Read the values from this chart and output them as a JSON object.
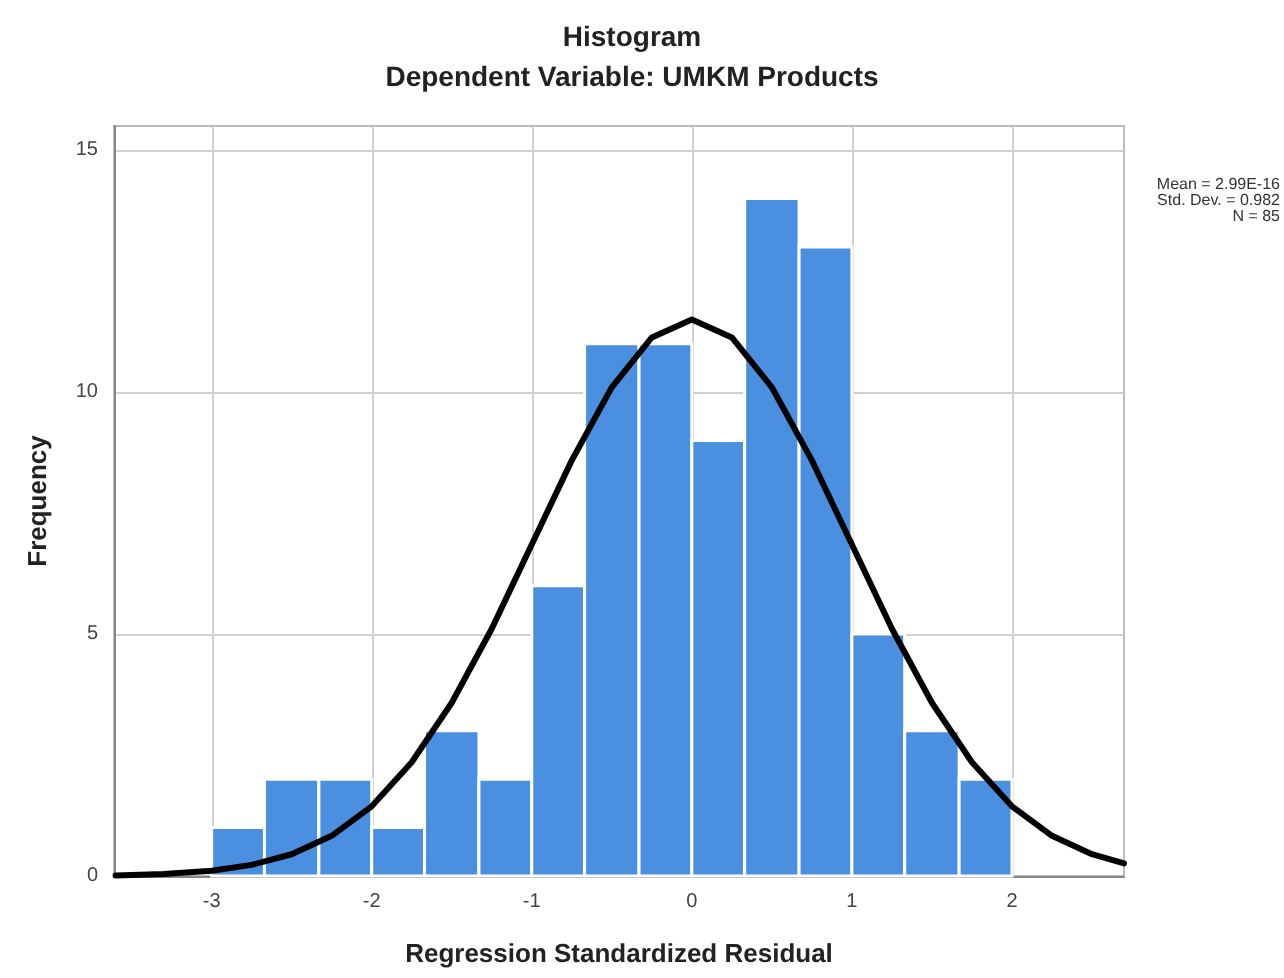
{
  "chart_data": {
    "type": "histogram",
    "title": "Histogram",
    "subtitle": "Dependent Variable: UMKM Products",
    "xlabel": "Regression Standardized Residual",
    "ylabel": "Frequency",
    "bins": [
      -3,
      -2.67,
      -2.33,
      -2,
      -1.67,
      -1.33,
      -1,
      -0.67,
      -0.33,
      0,
      0.33,
      0.67,
      1,
      1.33,
      1.67,
      2
    ],
    "series": [
      {
        "color": "#4a8fe0",
        "values": [
          1,
          2,
          2,
          1,
          3,
          2,
          6,
          11,
          11,
          9,
          14,
          13,
          5,
          3,
          2
        ]
      },
      {
        "type": "line",
        "color": "#000000",
        "x": [
          -3.6,
          -3.3,
          -3,
          -2.75,
          -2.5,
          -2.25,
          -2,
          -1.75,
          -1.5,
          -1.25,
          -1,
          -0.75,
          -0.5,
          -0.25,
          0,
          0.25,
          0.5,
          0.75,
          1,
          1.25,
          1.5,
          1.75,
          2,
          2.25,
          2.5,
          2.7
        ],
        "values": [
          0.01,
          0.04,
          0.11,
          0.23,
          0.45,
          0.83,
          1.44,
          2.35,
          3.58,
          5.11,
          6.85,
          8.59,
          10.1,
          11.13,
          11.5,
          11.13,
          10.1,
          8.59,
          6.85,
          5.11,
          3.58,
          2.35,
          1.44,
          0.83,
          0.45,
          0.26
        ]
      }
    ],
    "xlim": [
      -3.61,
      2.7
    ],
    "xticks": [
      -3,
      -2,
      -1,
      0,
      1,
      2
    ],
    "ylim": [
      0,
      15.5
    ],
    "yticks": [
      0,
      5,
      10,
      15
    ],
    "grid": true,
    "marker": "none",
    "line_style": "solid",
    "annotations": [
      "Mean = 2.99E-16",
      "Std. Dev. = 0.982",
      "N = 85"
    ]
  }
}
